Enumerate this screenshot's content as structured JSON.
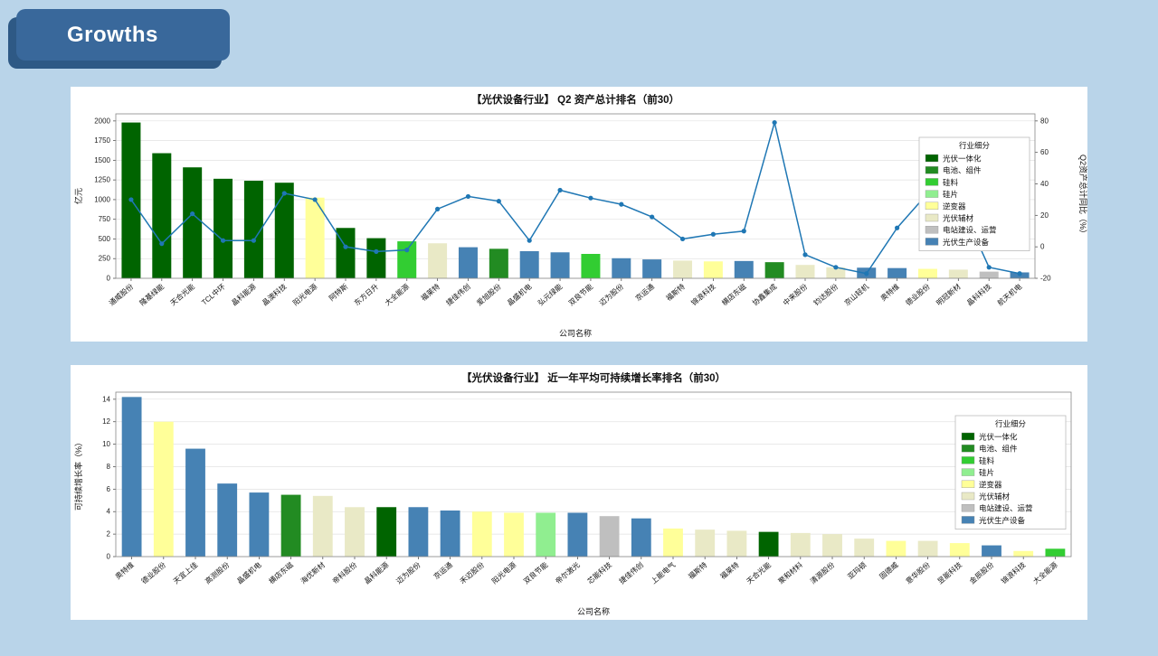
{
  "page": {
    "title": "Growths",
    "background_color": "#B9D4E9",
    "badge_color": "#39689B",
    "badge_shadow_color": "#2E5985",
    "panel_color": "#FFFFFF"
  },
  "legend": {
    "title": "行业细分",
    "items": [
      {
        "label": "光伏一体化",
        "color": "#006400"
      },
      {
        "label": "电池、组件",
        "color": "#228B22"
      },
      {
        "label": "硅料",
        "color": "#32CD32"
      },
      {
        "label": "硅片",
        "color": "#90EE90"
      },
      {
        "label": "逆变器",
        "color": "#FFFF99"
      },
      {
        "label": "光伏辅材",
        "color": "#E9E9C6"
      },
      {
        "label": "电站建设、运营",
        "color": "#BFBFBF"
      },
      {
        "label": "光伏生产设备",
        "color": "#4682B4"
      }
    ]
  },
  "chart_data": [
    {
      "type": "bar",
      "title": "【光伏设备行业】 Q2 资产总计排名（前30）",
      "xlabel": "公司名称",
      "ylabel": "亿元",
      "ylabel_right": "Q2资产总计同比（%）",
      "ylim": [
        0,
        2000
      ],
      "ytick_step": 250,
      "ylim_right": [
        -20,
        80
      ],
      "ytick_step_right": 20,
      "grid": true,
      "legend_position": "right",
      "categories": [
        "通威股份",
        "隆基绿能",
        "天合光能",
        "TCL中环",
        "晶科能源",
        "晶澳科技",
        "阳光电源",
        "阿特斯",
        "东方日升",
        "大全能源",
        "福莱特",
        "捷佳伟创",
        "爱旭股份",
        "晶盛机电",
        "弘元绿能",
        "双良节能",
        "迈为股份",
        "京运通",
        "福斯特",
        "锦浪科技",
        "横店东磁",
        "协鑫集成",
        "中来股份",
        "钧达股份",
        "京山轻机",
        "奥特维",
        "德业股份",
        "明冠新材",
        "晶科科技",
        "航天机电"
      ],
      "series": [
        {
          "name": "Q2资产总计",
          "type": "bar",
          "values": [
            1980,
            1590,
            1410,
            1265,
            1240,
            1215,
            1025,
            640,
            510,
            470,
            445,
            395,
            375,
            345,
            330,
            310,
            255,
            240,
            225,
            215,
            220,
            205,
            170,
            140,
            135,
            130,
            120,
            110,
            85,
            75
          ],
          "industries": [
            "光伏一体化",
            "光伏一体化",
            "光伏一体化",
            "光伏一体化",
            "光伏一体化",
            "光伏一体化",
            "逆变器",
            "光伏一体化",
            "光伏一体化",
            "硅料",
            "光伏辅材",
            "光伏生产设备",
            "电池、组件",
            "光伏生产设备",
            "光伏生产设备",
            "硅料",
            "光伏生产设备",
            "光伏生产设备",
            "光伏辅材",
            "逆变器",
            "光伏生产设备",
            "电池、组件",
            "光伏辅材",
            "光伏辅材",
            "光伏生产设备",
            "光伏生产设备",
            "逆变器",
            "光伏辅材",
            "电站建设、运营",
            "光伏生产设备"
          ]
        },
        {
          "name": "Q2资产总计同比",
          "type": "line",
          "color": "#1F77B4",
          "values": [
            30,
            2,
            21,
            4,
            4,
            34,
            30,
            0,
            -3,
            -2,
            24,
            32,
            29,
            4,
            36,
            31,
            27,
            19,
            5,
            8,
            10,
            79,
            -5,
            -13,
            -17,
            12,
            34,
            30,
            -13,
            -17
          ]
        }
      ]
    },
    {
      "type": "bar",
      "title": "【光伏设备行业】 近一年平均可持续增长率排名（前30）",
      "xlabel": "公司名称",
      "ylabel": "可持续增长率（%）",
      "ylim": [
        0,
        14
      ],
      "ytick_step": 2,
      "grid": true,
      "legend_position": "right",
      "categories": [
        "奥特维",
        "德业股份",
        "天宜上佳",
        "高测股份",
        "晶盛机电",
        "横店东磁",
        "海优新材",
        "帝科股份",
        "晶科能源",
        "迈为股份",
        "京运通",
        "禾迈股份",
        "阳光电源",
        "双良节能",
        "帝尔激光",
        "芯能科技",
        "捷佳伟创",
        "上能电气",
        "福斯特",
        "福莱特",
        "天合光能",
        "聚和材料",
        "清源股份",
        "亚玛顿",
        "固德威",
        "意华股份",
        "昱能科技",
        "金辰股份",
        "锦浪科技",
        "大全能源"
      ],
      "series": [
        {
          "name": "可持续增长率",
          "type": "bar",
          "values": [
            14.2,
            12.0,
            9.6,
            6.5,
            5.7,
            5.5,
            5.4,
            4.4,
            4.4,
            4.4,
            4.1,
            4.0,
            3.9,
            3.9,
            3.9,
            3.6,
            3.4,
            2.5,
            2.4,
            2.3,
            2.2,
            2.1,
            2.0,
            1.6,
            1.4,
            1.4,
            1.2,
            1.0,
            0.5,
            0.7
          ],
          "industries": [
            "光伏生产设备",
            "逆变器",
            "光伏生产设备",
            "光伏生产设备",
            "光伏生产设备",
            "电池、组件",
            "光伏辅材",
            "光伏辅材",
            "光伏一体化",
            "光伏生产设备",
            "光伏生产设备",
            "逆变器",
            "逆变器",
            "硅片",
            "光伏生产设备",
            "电站建设、运营",
            "光伏生产设备",
            "逆变器",
            "光伏辅材",
            "光伏辅材",
            "光伏一体化",
            "光伏辅材",
            "光伏辅材",
            "光伏辅材",
            "逆变器",
            "光伏辅材",
            "逆变器",
            "光伏生产设备",
            "逆变器",
            "硅料"
          ]
        }
      ]
    }
  ]
}
